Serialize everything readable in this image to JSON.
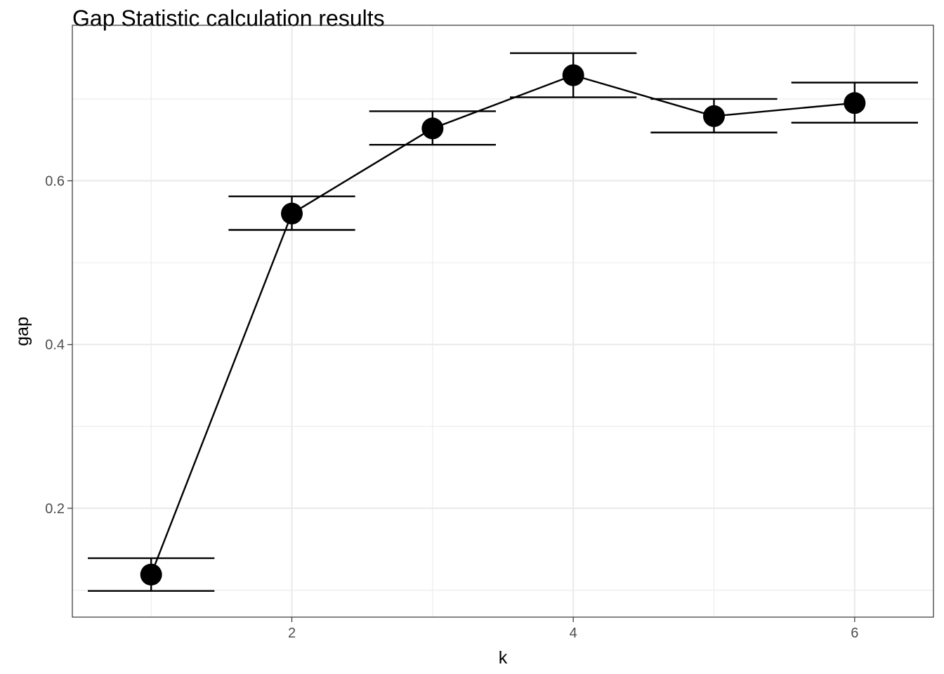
{
  "chart_data": {
    "type": "line",
    "title": "Gap Statistic calculation results",
    "xlabel": "k",
    "ylabel": "gap",
    "xlim": [
      0.44,
      6.56
    ],
    "ylim": [
      0.067,
      0.79
    ],
    "x_ticks": [
      2,
      4,
      6
    ],
    "x_tick_labels": [
      "2",
      "4",
      "6"
    ],
    "y_ticks": [
      0.2,
      0.4,
      0.6
    ],
    "y_tick_labels": [
      "0.2",
      "0.4",
      "0.6"
    ],
    "grid": true,
    "legend": "none",
    "series": [
      {
        "x": [
          1,
          2,
          3,
          4,
          5,
          6
        ],
        "values": [
          0.119,
          0.56,
          0.664,
          0.729,
          0.679,
          0.695
        ],
        "error_low": [
          0.099,
          0.54,
          0.644,
          0.702,
          0.659,
          0.671
        ],
        "error_high": [
          0.139,
          0.581,
          0.685,
          0.756,
          0.7,
          0.72
        ]
      }
    ],
    "colors": {
      "line": "#000000",
      "points": "#000000",
      "grid": "#ebebeb",
      "panel_border": "#333333"
    }
  }
}
